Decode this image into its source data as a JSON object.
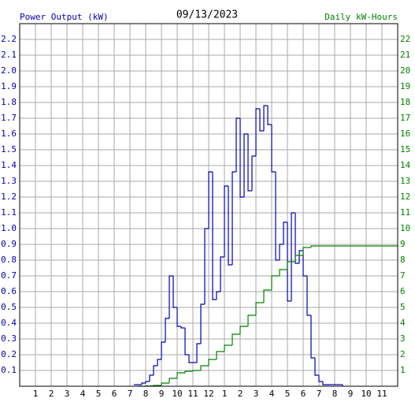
{
  "chart_data": {
    "type": "step-line",
    "title": "09/13/2023",
    "ylabel": "Power Output (kW)",
    "y2label": "Daily kW-Hours",
    "xlim": [
      0,
      24
    ],
    "xticks": [
      1,
      2,
      3,
      4,
      5,
      6,
      7,
      8,
      9,
      10,
      11,
      12,
      {
        "value": 13,
        "label": "1"
      },
      {
        "value": 14,
        "label": "2"
      },
      {
        "value": 15,
        "label": "3"
      },
      {
        "value": 16,
        "label": "4"
      },
      {
        "value": 17,
        "label": "5"
      },
      {
        "value": 18,
        "label": "6"
      },
      {
        "value": 19,
        "label": "7"
      },
      {
        "value": 20,
        "label": "8"
      },
      {
        "value": 21,
        "label": "9"
      },
      {
        "value": 22,
        "label": "10"
      },
      {
        "value": 23,
        "label": "11"
      }
    ],
    "ylim": [
      0,
      2.3
    ],
    "yticks": [
      0.1,
      0.2,
      0.3,
      0.4,
      0.5,
      0.6,
      0.7,
      0.8,
      0.9,
      {
        "value": 1,
        "label": "1.0"
      },
      1.1,
      1.2,
      1.3,
      1.4,
      1.5,
      1.6,
      1.7,
      1.8,
      1.9,
      {
        "value": 2,
        "label": "2.0"
      },
      2.1,
      2.2
    ],
    "y2lim": [
      0,
      23
    ],
    "y2ticks": [
      1,
      2,
      3,
      4,
      5,
      6,
      7,
      8,
      9,
      10,
      11,
      12,
      13,
      14,
      15,
      16,
      17,
      18,
      19,
      20,
      21,
      22
    ],
    "grid": true,
    "series": [
      {
        "color": "#0000b0",
        "axis": "y",
        "x": [
          7.25,
          7.5,
          7.75,
          8.0,
          8.25,
          8.5,
          8.75,
          9.0,
          9.25,
          9.5,
          9.75,
          10.0,
          10.25,
          10.5,
          10.75,
          11.0,
          11.25,
          11.5,
          11.75,
          12.0,
          12.25,
          12.5,
          12.75,
          13.0,
          13.25,
          13.5,
          13.75,
          14.0,
          14.25,
          14.5,
          14.75,
          15.0,
          15.25,
          15.5,
          15.75,
          16.0,
          16.25,
          16.5,
          16.75,
          17.0,
          17.25,
          17.5,
          17.75,
          18.0,
          18.25,
          18.5,
          18.75,
          19.0,
          19.25,
          19.75,
          20.5
        ],
        "values": [
          0.01,
          0.01,
          0.02,
          0.03,
          0.07,
          0.13,
          0.17,
          0.28,
          0.43,
          0.7,
          0.5,
          0.38,
          0.37,
          0.2,
          0.15,
          0.15,
          0.27,
          0.52,
          1.0,
          1.36,
          0.55,
          0.6,
          0.82,
          1.27,
          0.77,
          1.36,
          1.7,
          1.2,
          1.6,
          1.24,
          1.46,
          1.76,
          1.62,
          1.78,
          1.66,
          1.36,
          0.8,
          0.9,
          1.04,
          0.54,
          1.1,
          0.78,
          0.86,
          0.7,
          0.45,
          0.18,
          0.07,
          0.03,
          0.01,
          0.01,
          0
        ]
      },
      {
        "color": "#008000",
        "axis": "y2",
        "x": [
          7.5,
          8.0,
          8.5,
          9.0,
          9.5,
          10.0,
          10.5,
          11.0,
          11.5,
          12.0,
          12.5,
          13.0,
          13.5,
          14.0,
          14.5,
          15.0,
          15.5,
          16.0,
          16.5,
          17.0,
          17.5,
          18.0,
          18.5,
          24
        ],
        "values": [
          0,
          0.02,
          0.05,
          0.2,
          0.5,
          0.85,
          0.95,
          1.0,
          1.3,
          1.7,
          2.2,
          2.6,
          3.3,
          3.8,
          4.5,
          5.3,
          6.1,
          7.0,
          7.4,
          7.9,
          8.3,
          8.8,
          8.9,
          8.9
        ]
      }
    ]
  }
}
